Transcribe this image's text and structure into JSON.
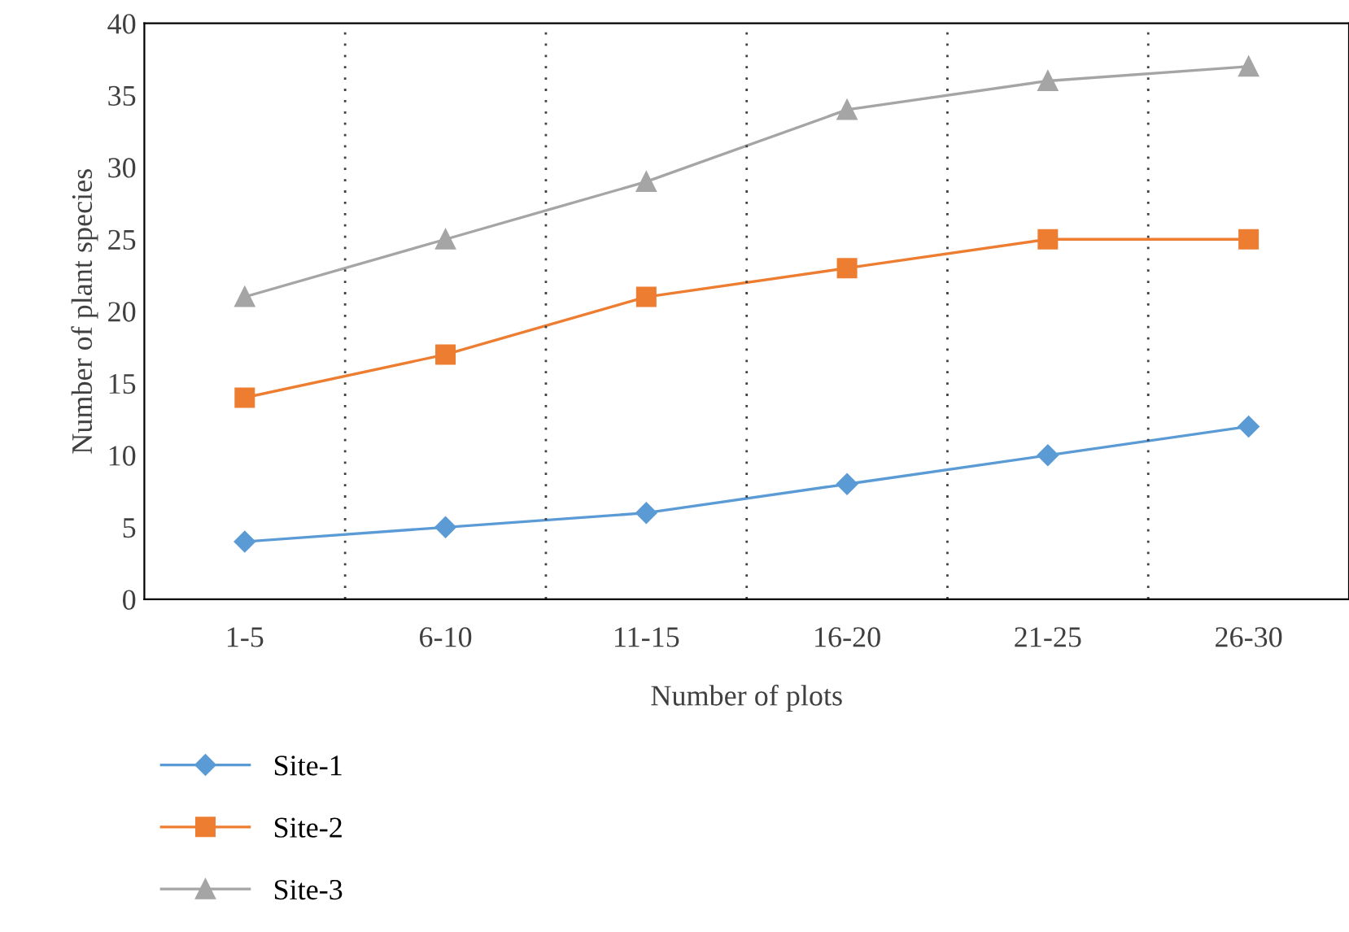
{
  "chart_data": {
    "type": "line",
    "xlabel": "Number of plots",
    "ylabel": "Number of plant species",
    "categories": [
      "1-5",
      "6-10",
      "11-15",
      "16-20",
      "21-25",
      "26-30"
    ],
    "series": [
      {
        "name": "Site-1",
        "color": "#5b9bd5",
        "marker": "diamond",
        "values": [
          4,
          5,
          6,
          8,
          10,
          12
        ]
      },
      {
        "name": "Site-2",
        "color": "#ed7d31",
        "marker": "square",
        "values": [
          14,
          17,
          21,
          23,
          25,
          25
        ]
      },
      {
        "name": "Site-3",
        "color": "#a5a5a5",
        "marker": "triangle",
        "values": [
          21,
          25,
          29,
          34,
          36,
          37
        ]
      }
    ],
    "ylim": [
      0,
      40
    ],
    "yticks": [
      0,
      5,
      10,
      15,
      20,
      25,
      30,
      35,
      40
    ],
    "grid": "x",
    "legend": "bottom left",
    "line_style": "solid"
  }
}
